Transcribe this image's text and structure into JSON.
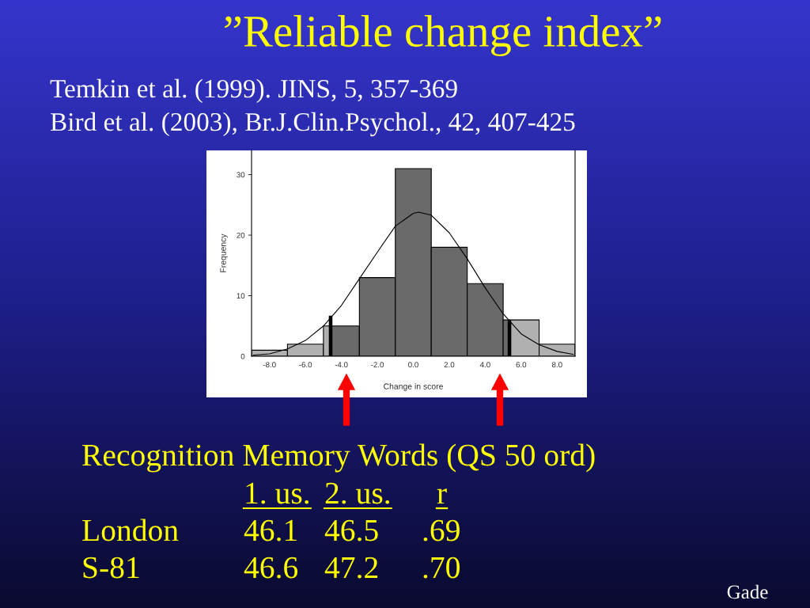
{
  "chart_data": {
    "type": "histogram",
    "title": "”Reliable change index”",
    "xlabel": "Change in score",
    "ylabel": "Frequency",
    "series": [
      {
        "bins": [
          -9,
          -7,
          -5,
          -4.6,
          -3,
          -1,
          1,
          3,
          5,
          5.35,
          7,
          9
        ],
        "values": [
          1,
          2,
          5,
          5,
          13,
          31,
          18,
          12,
          6,
          6,
          2
        ],
        "colors": [
          "#b0b0b0",
          "#b0b0b0",
          "#b0b0b0",
          "#6a6a6a",
          "#6a6a6a",
          "#6a6a6a",
          "#6a6a6a",
          "#6a6a6a",
          "#6a6a6a",
          "#b0b0b0",
          "#b0b0b0"
        ]
      },
      {
        "type": "line",
        "x": [
          -8.9,
          -8,
          -7,
          -6,
          -5,
          -4,
          -3,
          -2,
          -1,
          0,
          0.3,
          1,
          2,
          3,
          4,
          5,
          6,
          7,
          8,
          8.9
        ],
        "values": [
          0.2,
          0.4,
          1.2,
          2.6,
          5.0,
          8.4,
          12.8,
          17.2,
          21.5,
          23.6,
          23.8,
          23.3,
          20.4,
          16.1,
          11.3,
          7.0,
          3.7,
          1.9,
          0.8,
          0.3
        ],
        "color": "#000000"
      },
      {
        "type": "bar",
        "x": [
          -4.6,
          5.35
        ],
        "values": [
          6.7,
          6.0
        ],
        "color": "#000000"
      }
    ],
    "xlim": [
      -9,
      9
    ],
    "ylim": [
      0,
      34
    ],
    "xticks": [
      {
        "value": -8,
        "label": "-8.0"
      },
      {
        "value": -6,
        "label": "-6.0"
      },
      {
        "value": -4,
        "label": "-4.0"
      },
      {
        "value": -2,
        "label": "-2.0"
      },
      {
        "value": 0,
        "label": "0.0"
      },
      {
        "value": 2,
        "label": "2.0"
      },
      {
        "value": 4,
        "label": "4.0"
      },
      {
        "value": 6,
        "label": "6.0"
      },
      {
        "value": 8,
        "label": "8.0"
      }
    ],
    "yticks": [
      0,
      10,
      20,
      30
    ],
    "annotations": [
      "Temkin et al. (1999). JINS, 5, 357-369",
      "Bird et al. (2003), Br.J.Clin.Psychol., 42, 407-425",
      "Recognition Memory Words (QS 50 ord)",
      "1. us.",
      "2. us.",
      "r",
      "London",
      "46.1",
      "46.5",
      ".69",
      "S-81",
      "46.6",
      "47.2",
      ".70",
      "Gade"
    ]
  }
}
